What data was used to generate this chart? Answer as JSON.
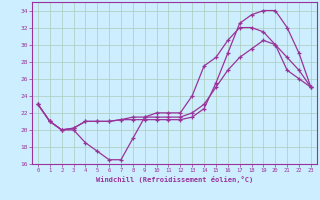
{
  "xlabel": "Windchill (Refroidissement éolien,°C)",
  "bg_color": "#cceeff",
  "grid_color": "#aaccbb",
  "line_color": "#993399",
  "x_ticks": [
    0,
    1,
    2,
    3,
    4,
    5,
    6,
    7,
    8,
    9,
    10,
    11,
    12,
    13,
    14,
    15,
    16,
    17,
    18,
    19,
    20,
    21,
    22,
    23
  ],
  "ylim": [
    16,
    35
  ],
  "xlim": [
    -0.5,
    23.5
  ],
  "yticks": [
    16,
    18,
    20,
    22,
    24,
    26,
    28,
    30,
    32,
    34
  ],
  "line1_y": [
    23,
    21,
    20,
    20,
    18.5,
    17.5,
    16.5,
    16.5,
    19.0,
    21.5,
    22,
    22,
    22,
    24,
    27.5,
    28.5,
    30.5,
    32,
    32,
    31.5,
    30,
    28.5,
    27,
    25
  ],
  "line2_y": [
    23,
    21,
    20,
    20.2,
    21,
    21,
    21,
    21.2,
    21.2,
    21.2,
    21.2,
    21.2,
    21.2,
    21.5,
    22.5,
    25.5,
    29,
    32.5,
    33.5,
    34,
    34,
    32,
    29,
    25
  ],
  "line3_y": [
    23,
    21,
    20,
    20.2,
    21,
    21,
    21,
    21.2,
    21.5,
    21.5,
    21.5,
    21.5,
    21.5,
    22,
    23,
    25,
    27,
    28.5,
    29.5,
    30.5,
    30,
    27,
    26,
    25
  ]
}
